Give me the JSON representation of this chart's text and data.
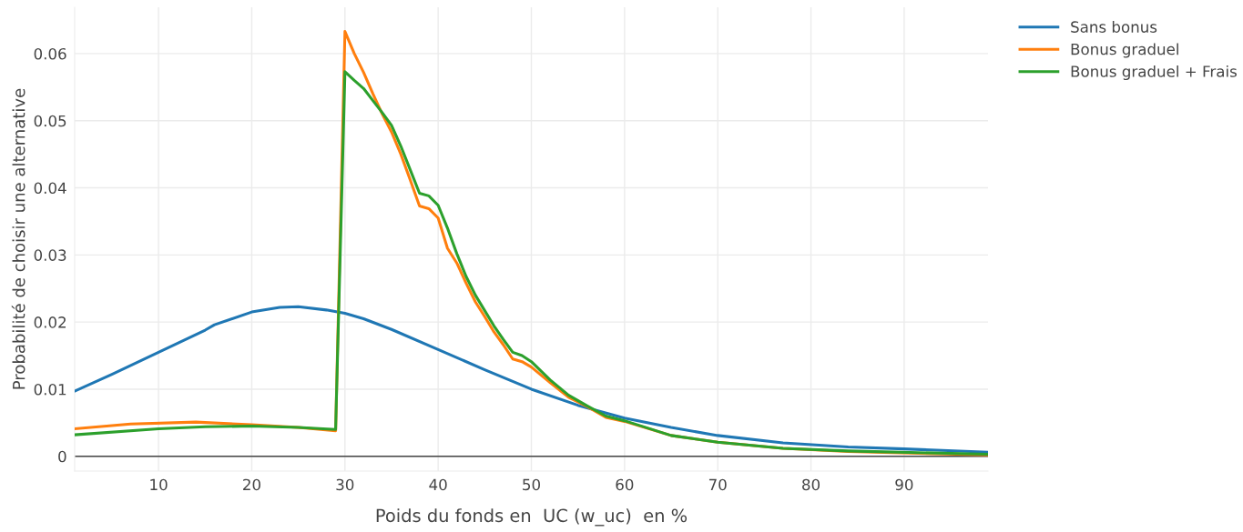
{
  "chart_data": {
    "type": "line",
    "xlabel": "Poids du fonds en  UC (w_uc)  en %",
    "ylabel": "Probabilité de choisir une alternative",
    "xlim": [
      1,
      99
    ],
    "xticks": [
      10,
      20,
      30,
      40,
      50,
      60,
      70,
      80,
      90
    ],
    "ylim": [
      -0.0022,
      0.0669
    ],
    "yticks": [
      0,
      0.01,
      0.02,
      0.03,
      0.04,
      0.05,
      0.06
    ],
    "grid": true,
    "legend": "top right",
    "marker": "none",
    "line_style": "solid",
    "ref_lines": [
      {
        "axis": "y",
        "value": 0,
        "label": null,
        "color": "#444444"
      }
    ],
    "series": [
      {
        "name": "Sans bonus",
        "color": "#1f77b4",
        "x": [
          1,
          5,
          10,
          15,
          16,
          20,
          23,
          25,
          28,
          30,
          32,
          35,
          40,
          45,
          50,
          55,
          60,
          65,
          70,
          77,
          84,
          90,
          99
        ],
        "values": [
          0.0097,
          0.0122,
          0.0155,
          0.0188,
          0.0196,
          0.0215,
          0.0222,
          0.0223,
          0.0218,
          0.0213,
          0.0205,
          0.0189,
          0.0159,
          0.0129,
          0.01,
          0.0076,
          0.0057,
          0.0043,
          0.0031,
          0.002,
          0.0014,
          0.0011,
          0.0006
        ]
      },
      {
        "name": "Bonus graduel",
        "color": "#ff7f0e",
        "x": [
          1,
          7,
          14,
          20,
          25,
          29,
          30,
          31,
          32,
          33,
          34,
          35,
          36,
          37,
          38,
          39,
          40,
          41,
          42,
          43,
          44,
          45,
          46,
          47,
          48,
          49,
          50,
          52,
          54,
          56,
          58,
          60,
          65,
          70,
          77,
          84,
          99
        ],
        "values": [
          0.0041,
          0.0048,
          0.0051,
          0.0047,
          0.0043,
          0.0038,
          0.0633,
          0.06,
          0.0572,
          0.054,
          0.051,
          0.0483,
          0.045,
          0.0412,
          0.0373,
          0.0369,
          0.0355,
          0.031,
          0.0288,
          0.0258,
          0.023,
          0.0208,
          0.0185,
          0.0166,
          0.0145,
          0.0141,
          0.0133,
          0.011,
          0.0088,
          0.0074,
          0.0058,
          0.0052,
          0.0031,
          0.0021,
          0.0012,
          0.0007,
          0.0002
        ]
      },
      {
        "name": "Bonus graduel + Frais",
        "color": "#2ca02c",
        "x": [
          1,
          10,
          15,
          20,
          25,
          29,
          30,
          31,
          32,
          33,
          34,
          35,
          36,
          37,
          38,
          39,
          40,
          41,
          42,
          43,
          44,
          45,
          46,
          47,
          48,
          49,
          50,
          52,
          54,
          56,
          58,
          60,
          65,
          70,
          77,
          84,
          99
        ],
        "values": [
          0.0032,
          0.0041,
          0.0044,
          0.0045,
          0.0043,
          0.004,
          0.0573,
          0.056,
          0.0548,
          0.053,
          0.0512,
          0.0493,
          0.0462,
          0.0427,
          0.0392,
          0.0388,
          0.0374,
          0.034,
          0.0302,
          0.0268,
          0.024,
          0.0217,
          0.0194,
          0.0174,
          0.0155,
          0.015,
          0.0141,
          0.0114,
          0.0091,
          0.0075,
          0.006,
          0.0053,
          0.0031,
          0.0021,
          0.0012,
          0.0008,
          0.0003
        ]
      }
    ]
  }
}
